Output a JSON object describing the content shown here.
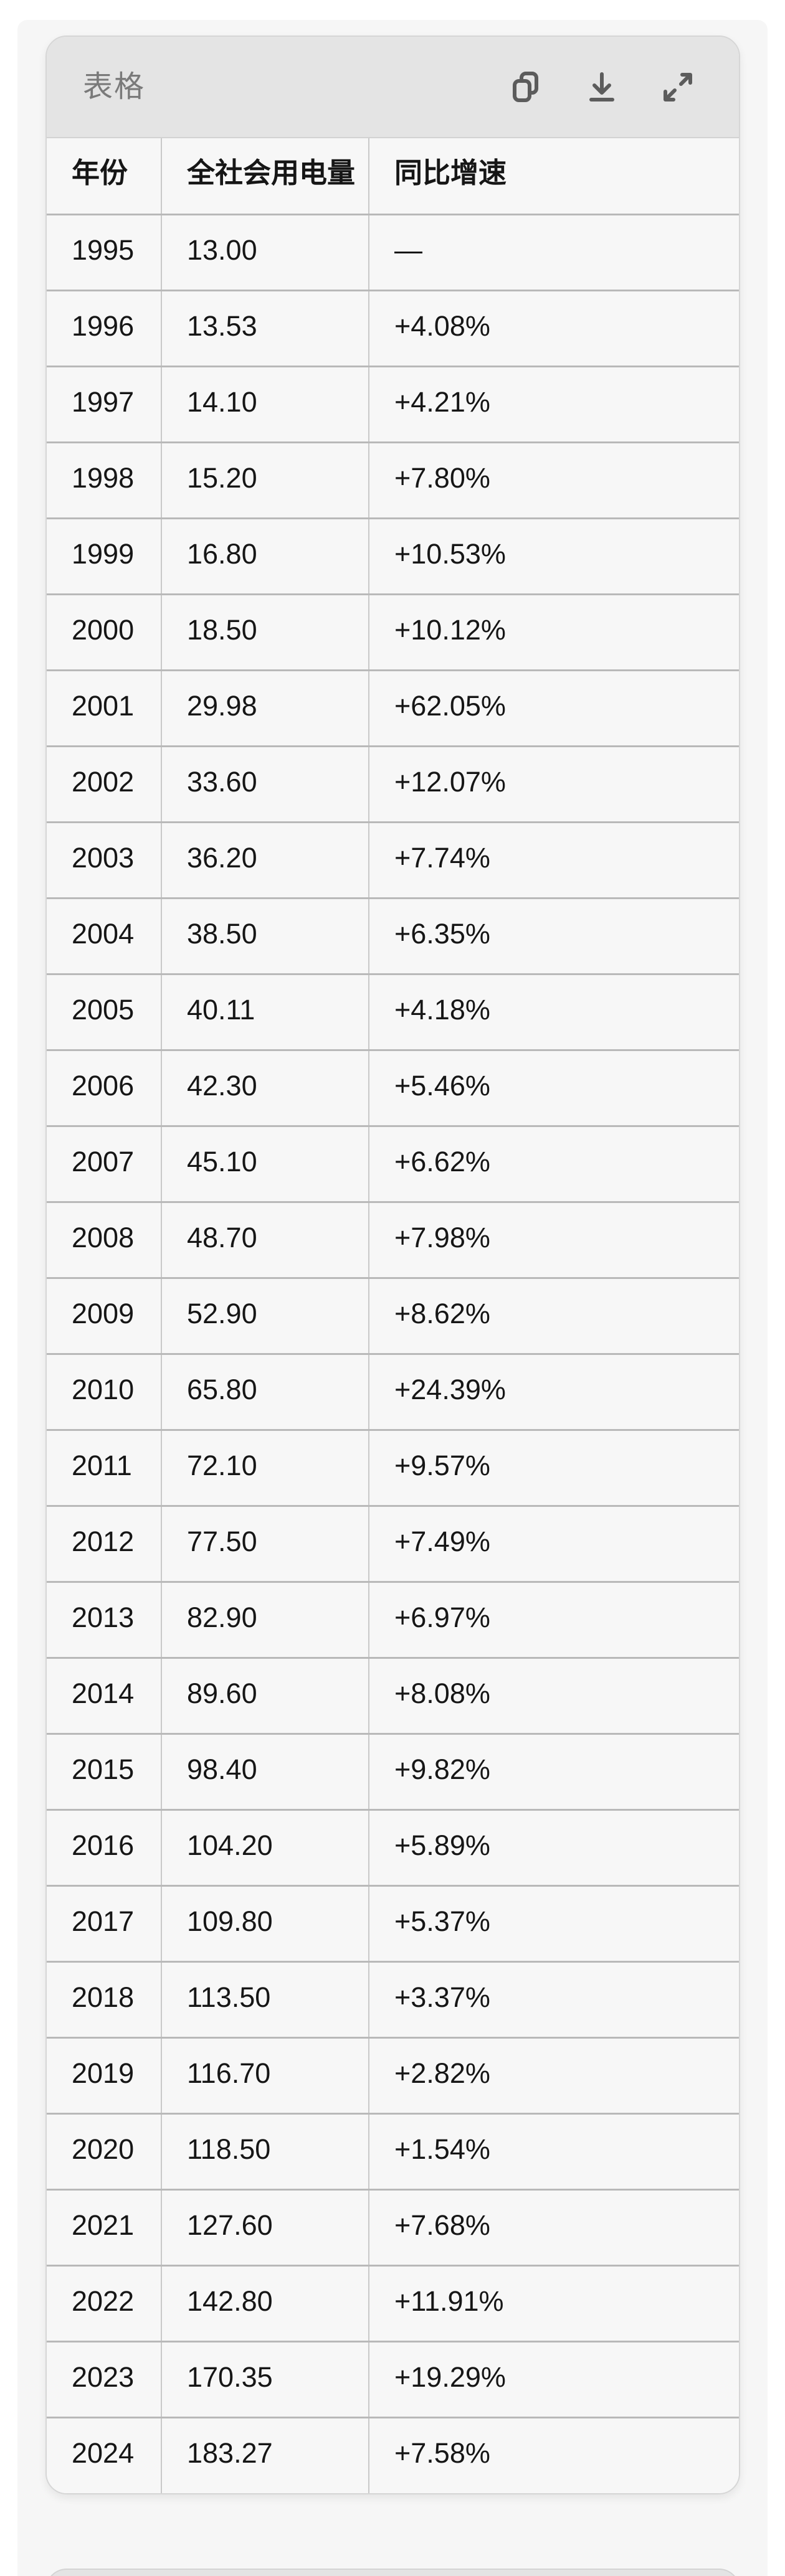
{
  "card": {
    "title": "表格",
    "actions": {
      "copy": "copy",
      "download": "download",
      "expand": "expand"
    }
  },
  "table": {
    "columns": [
      "年份",
      "全社会用电量",
      "同比增速"
    ],
    "rows": [
      [
        "1995",
        "13.00",
        "—"
      ],
      [
        "1996",
        "13.53",
        "+4.08%"
      ],
      [
        "1997",
        "14.10",
        "+4.21%"
      ],
      [
        "1998",
        "15.20",
        "+7.80%"
      ],
      [
        "1999",
        "16.80",
        "+10.53%"
      ],
      [
        "2000",
        "18.50",
        "+10.12%"
      ],
      [
        "2001",
        "29.98",
        "+62.05%"
      ],
      [
        "2002",
        "33.60",
        "+12.07%"
      ],
      [
        "2003",
        "36.20",
        "+7.74%"
      ],
      [
        "2004",
        "38.50",
        "+6.35%"
      ],
      [
        "2005",
        "40.11",
        "+4.18%"
      ],
      [
        "2006",
        "42.30",
        "+5.46%"
      ],
      [
        "2007",
        "45.10",
        "+6.62%"
      ],
      [
        "2008",
        "48.70",
        "+7.98%"
      ],
      [
        "2009",
        "52.90",
        "+8.62%"
      ],
      [
        "2010",
        "65.80",
        "+24.39%"
      ],
      [
        "2011",
        "72.10",
        "+9.57%"
      ],
      [
        "2012",
        "77.50",
        "+7.49%"
      ],
      [
        "2013",
        "82.90",
        "+6.97%"
      ],
      [
        "2014",
        "89.60",
        "+8.08%"
      ],
      [
        "2015",
        "98.40",
        "+9.82%"
      ],
      [
        "2016",
        "104.20",
        "+5.89%"
      ],
      [
        "2017",
        "109.80",
        "+5.37%"
      ],
      [
        "2018",
        "113.50",
        "+3.37%"
      ],
      [
        "2019",
        "116.70",
        "+2.82%"
      ],
      [
        "2020",
        "118.50",
        "+1.54%"
      ],
      [
        "2021",
        "127.60",
        "+7.68%"
      ],
      [
        "2022",
        "142.80",
        "+11.91%"
      ],
      [
        "2023",
        "170.35",
        "+19.29%"
      ],
      [
        "2024",
        "183.27",
        "+7.58%"
      ]
    ]
  },
  "colors": {
    "page_background": "#ffffff",
    "panel_background": "#f6f6f6",
    "card_background": "#f7f7f7",
    "card_header_background": "#e4e4e4",
    "card_border": "#d6d6d6",
    "title_text": "#7a7a7a",
    "icon": "#5c5c5c",
    "cell_text": "#161616",
    "row_border": "#b9b9b9",
    "column_border": "#c9c9c9"
  },
  "chart_data": {
    "type": "table",
    "title": "表格",
    "columns": [
      "年份",
      "全社会用电量",
      "同比增速"
    ],
    "x": [
      1995,
      1996,
      1997,
      1998,
      1999,
      2000,
      2001,
      2002,
      2003,
      2004,
      2005,
      2006,
      2007,
      2008,
      2009,
      2010,
      2011,
      2012,
      2013,
      2014,
      2015,
      2016,
      2017,
      2018,
      2019,
      2020,
      2021,
      2022,
      2023,
      2024
    ],
    "series": [
      {
        "name": "全社会用电量",
        "values": [
          13.0,
          13.53,
          14.1,
          15.2,
          16.8,
          18.5,
          29.98,
          33.6,
          36.2,
          38.5,
          40.11,
          42.3,
          45.1,
          48.7,
          52.9,
          65.8,
          72.1,
          77.5,
          82.9,
          89.6,
          98.4,
          104.2,
          109.8,
          113.5,
          116.7,
          118.5,
          127.6,
          142.8,
          170.35,
          183.27
        ]
      },
      {
        "name": "同比增速(%)",
        "values": [
          null,
          4.08,
          4.21,
          7.8,
          10.53,
          10.12,
          62.05,
          12.07,
          7.74,
          6.35,
          4.18,
          5.46,
          6.62,
          7.98,
          8.62,
          24.39,
          9.57,
          7.49,
          6.97,
          8.08,
          9.82,
          5.89,
          5.37,
          3.37,
          2.82,
          1.54,
          7.68,
          11.91,
          19.29,
          7.58
        ]
      }
    ]
  }
}
